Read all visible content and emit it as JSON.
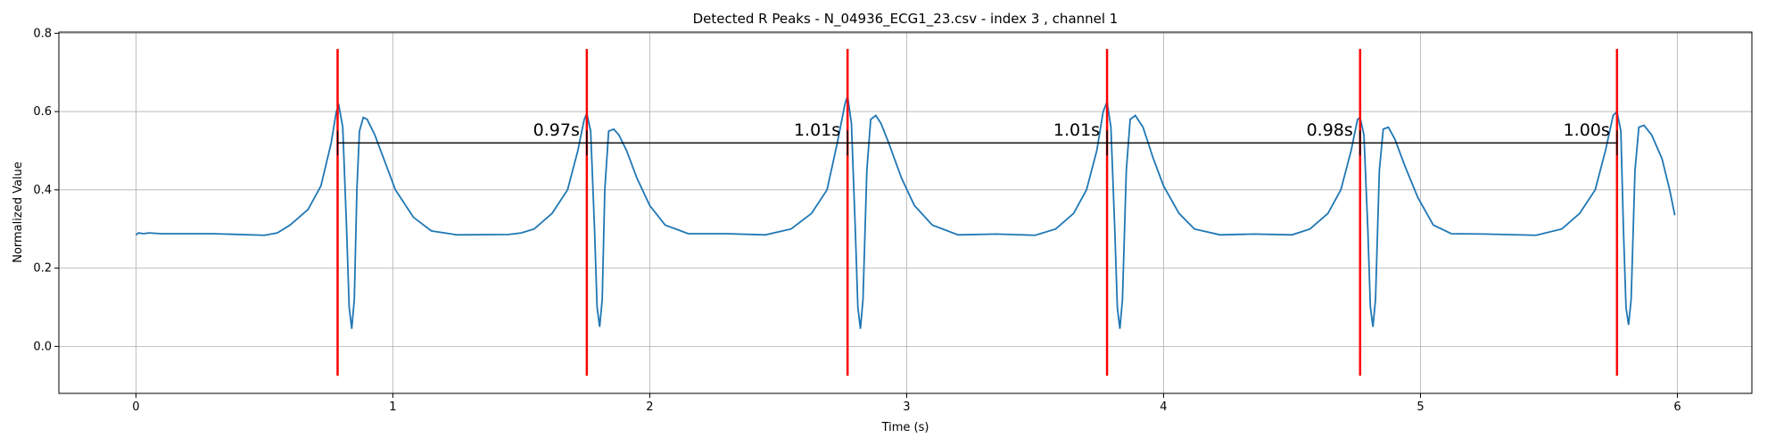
{
  "chart_data": {
    "type": "line",
    "title": "Detected R Peaks - N_04936_ECG1_23.csv - index 3 , channel 1",
    "x_label": "Time (s)",
    "y_label": "Normalized Value",
    "xlim": [
      -0.3,
      6.29
    ],
    "ylim": [
      -0.12,
      0.803
    ],
    "xticks": [
      0,
      1,
      2,
      3,
      4,
      5,
      6
    ],
    "yticks": [
      {
        "value": 0,
        "label": "0.0"
      },
      0.2,
      0.4,
      0.6,
      0.8
    ],
    "grid": true,
    "series": [
      {
        "color": "#1f77b4",
        "x": [
          0,
          0.01,
          0.03,
          0.05,
          0.1,
          0.3,
          0.5,
          0.55,
          0.6,
          0.67,
          0.72,
          0.76,
          0.78,
          0.79,
          0.805,
          0.82,
          0.83,
          0.84,
          0.85,
          0.86,
          0.87,
          0.885,
          0.9,
          0.93,
          0.97,
          1.01,
          1.08,
          1.15,
          1.25,
          1.45,
          1.5,
          1.55,
          1.62,
          1.68,
          1.72,
          1.745,
          1.755,
          1.77,
          1.785,
          1.795,
          1.805,
          1.815,
          1.825,
          1.84,
          1.86,
          1.88,
          1.91,
          1.95,
          2.0,
          2.06,
          2.15,
          2.3,
          2.45,
          2.55,
          2.63,
          2.69,
          2.73,
          2.76,
          2.77,
          2.785,
          2.8,
          2.81,
          2.82,
          2.83,
          2.845,
          2.86,
          2.88,
          2.9,
          2.93,
          2.98,
          3.03,
          3.1,
          3.2,
          3.35,
          3.5,
          3.58,
          3.65,
          3.7,
          3.74,
          3.765,
          3.78,
          3.795,
          3.81,
          3.82,
          3.83,
          3.84,
          3.855,
          3.87,
          3.89,
          3.92,
          3.96,
          4.0,
          4.06,
          4.12,
          4.22,
          4.35,
          4.5,
          4.57,
          4.64,
          4.69,
          4.73,
          4.755,
          4.765,
          4.78,
          4.795,
          4.805,
          4.815,
          4.825,
          4.84,
          4.855,
          4.875,
          4.9,
          4.94,
          4.99,
          5.05,
          5.12,
          5.25,
          5.45,
          5.55,
          5.62,
          5.68,
          5.72,
          5.75,
          5.765,
          5.78,
          5.79,
          5.8,
          5.81,
          5.82,
          5.835,
          5.85,
          5.87,
          5.9,
          5.94,
          5.97,
          5.99
        ],
        "values": [
          0.285,
          0.29,
          0.288,
          0.29,
          0.288,
          0.288,
          0.284,
          0.29,
          0.31,
          0.35,
          0.41,
          0.52,
          0.6,
          0.615,
          0.56,
          0.3,
          0.1,
          0.045,
          0.12,
          0.4,
          0.55,
          0.585,
          0.58,
          0.54,
          0.47,
          0.4,
          0.33,
          0.295,
          0.285,
          0.286,
          0.29,
          0.3,
          0.34,
          0.4,
          0.5,
          0.58,
          0.595,
          0.55,
          0.3,
          0.1,
          0.05,
          0.12,
          0.4,
          0.55,
          0.555,
          0.54,
          0.5,
          0.43,
          0.36,
          0.31,
          0.288,
          0.288,
          0.285,
          0.3,
          0.34,
          0.4,
          0.52,
          0.62,
          0.64,
          0.57,
          0.3,
          0.1,
          0.045,
          0.12,
          0.45,
          0.58,
          0.59,
          0.57,
          0.52,
          0.43,
          0.36,
          0.31,
          0.285,
          0.287,
          0.284,
          0.3,
          0.34,
          0.4,
          0.5,
          0.6,
          0.625,
          0.56,
          0.3,
          0.1,
          0.045,
          0.12,
          0.45,
          0.58,
          0.59,
          0.56,
          0.48,
          0.41,
          0.34,
          0.3,
          0.285,
          0.287,
          0.285,
          0.3,
          0.34,
          0.4,
          0.5,
          0.58,
          0.585,
          0.54,
          0.3,
          0.1,
          0.05,
          0.12,
          0.45,
          0.555,
          0.56,
          0.53,
          0.46,
          0.38,
          0.31,
          0.288,
          0.287,
          0.284,
          0.3,
          0.34,
          0.4,
          0.5,
          0.59,
          0.6,
          0.55,
          0.3,
          0.1,
          0.055,
          0.12,
          0.45,
          0.56,
          0.565,
          0.54,
          0.48,
          0.4,
          0.335
        ]
      }
    ],
    "r_peaks": {
      "x": [
        0.785,
        1.755,
        2.77,
        3.78,
        4.765,
        5.765
      ],
      "ymin": -0.075,
      "ymax": 0.76,
      "color": "red"
    },
    "intervals": {
      "y": 0.52,
      "color": "black",
      "values": [
        0.97,
        1.01,
        1.01,
        0.98,
        1.0
      ],
      "value_labels": [
        "0.97s",
        "1.01s",
        "1.01s",
        "0.98s",
        "1.00s"
      ]
    }
  }
}
